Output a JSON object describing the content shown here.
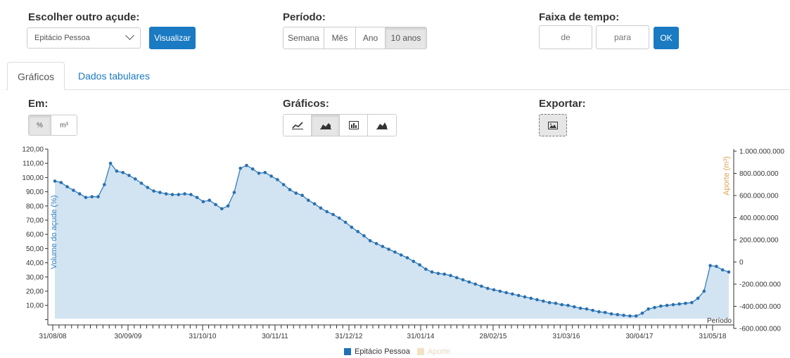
{
  "selector": {
    "title": "Escolher outro açude:",
    "selected": "Epitácio Pessoa",
    "button": "Visualizar"
  },
  "periodo": {
    "title": "Período:",
    "options": [
      "Semana",
      "Mês",
      "Ano",
      "10 anos"
    ],
    "active_index": 3
  },
  "faixa": {
    "title": "Faixa de tempo:",
    "from_placeholder": "de",
    "to_placeholder": "para",
    "ok": "OK"
  },
  "tabs": [
    "Gráficos",
    "Dados tabulares"
  ],
  "em": {
    "title": "Em:",
    "options": [
      "%",
      "m³"
    ],
    "active_index": 0
  },
  "graficos": {
    "title": "Gráficos:",
    "icons": [
      "line-chart-icon",
      "area-chart-icon",
      "bar-chart-icon",
      "area-chart-alt-icon"
    ],
    "active_index": 1
  },
  "exportar": {
    "title": "Exportar:",
    "icon": "image-icon"
  },
  "colors": {
    "accent": "#1a7ac2",
    "series": "#2f7fbf",
    "area": "#d2e3f1",
    "aporte": "#f2e2c4",
    "aporte_label": "#e0a050"
  },
  "chart_data": {
    "type": "area",
    "ylabel_left": "Volume do açude (%)",
    "ylabel_right": "Aporte (m³)",
    "xlabel": "Período",
    "y_ticks_left": [
      "120,00",
      "110,00",
      "100,00",
      "90,00",
      "80,00",
      "70,00",
      "60,00",
      "50,00",
      "40,00",
      "30,00",
      "20,00",
      "10,00"
    ],
    "y_ticks_right": [
      "1.000.000.000",
      "800.000.000",
      "600.000.000",
      "400.000.000",
      "200.000.000",
      "0",
      "-200.000.000",
      "-400.000.000",
      "-600.000.000"
    ],
    "x_ticks": [
      "31/08/08",
      "30/09/09",
      "31/10/10",
      "30/11/11",
      "31/12/12",
      "31/01/14",
      "28/02/15",
      "31/03/16",
      "30/04/17",
      "31/05/18"
    ],
    "legend": [
      "Epitácio Pessoa",
      "Aporte"
    ],
    "series": [
      {
        "name": "Epitácio Pessoa",
        "values": [
          97.5,
          96.5,
          93.5,
          91,
          88.5,
          86,
          86.5,
          86.5,
          95,
          110,
          104.5,
          103.5,
          101.5,
          99,
          96,
          93,
          90.5,
          89.5,
          88.5,
          88,
          88,
          88.5,
          88,
          86,
          83,
          84,
          81,
          78,
          80,
          89.5,
          106.5,
          108.5,
          106,
          103,
          103.5,
          101,
          98.5,
          95,
          91.5,
          89,
          87.5,
          84,
          81.5,
          78.5,
          76,
          74,
          71.5,
          68.5,
          65,
          62,
          59,
          55.5,
          53.5,
          51.5,
          49.5,
          47.5,
          45.5,
          43.5,
          41,
          38.5,
          35.5,
          33.5,
          32.5,
          32,
          31,
          29.5,
          28,
          26.5,
          25,
          23.5,
          22,
          21,
          20,
          19,
          18,
          17,
          16,
          15,
          14,
          13,
          12,
          11.5,
          10.5,
          10,
          9,
          8,
          7.5,
          6.5,
          5.5,
          5,
          4,
          3.5,
          3,
          2.5,
          2.5,
          4.5,
          7.5,
          8.5,
          9.5,
          10,
          10.5,
          11,
          11.5,
          12,
          15,
          20,
          38,
          37.5,
          35,
          33.5
        ]
      },
      {
        "name": "Aporte",
        "values": []
      }
    ]
  }
}
